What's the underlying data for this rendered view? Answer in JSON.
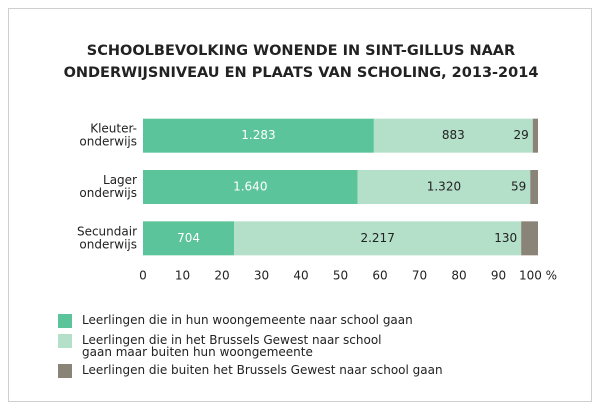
{
  "chart_data": {
    "type": "bar",
    "orientation": "horizontal",
    "stack": "percent",
    "title": [
      "SCHOOLBEVOLKING WONENDE IN SINT-GILLUS NAAR",
      "ONDERWIJSNIVEAU EN PLAATS VAN SCHOLING, 2013-2014"
    ],
    "categories": [
      [
        "Kleuter-",
        "onderwijs"
      ],
      [
        "Lager",
        "onderwijs"
      ],
      [
        "Secundair",
        "onderwijs"
      ]
    ],
    "series": [
      {
        "name": "Leerlingen die in hun woongemeente naar school gaan",
        "color": "#5cc49a",
        "values": [
          1283,
          1640,
          704
        ],
        "value_labels": [
          "1.283",
          "1.640",
          "704"
        ]
      },
      {
        "name": "Leerlingen die in het Brussels Gewest naar school gaan maar buiten hun woongemeente",
        "color": "#b4dfc9",
        "values": [
          883,
          1320,
          2217
        ],
        "value_labels": [
          "883",
          "1.320",
          "2.217"
        ]
      },
      {
        "name": "Leerlingen die buiten het Brussels Gewest naar school gaan",
        "color": "#8a8377",
        "values": [
          29,
          59,
          130
        ],
        "value_labels": [
          "29",
          "59",
          "130"
        ]
      }
    ],
    "xlim": [
      0,
      100
    ],
    "xticks": [
      0,
      10,
      20,
      30,
      40,
      50,
      60,
      70,
      80,
      90,
      {
        "value": 100,
        "label": "100 %"
      }
    ]
  }
}
